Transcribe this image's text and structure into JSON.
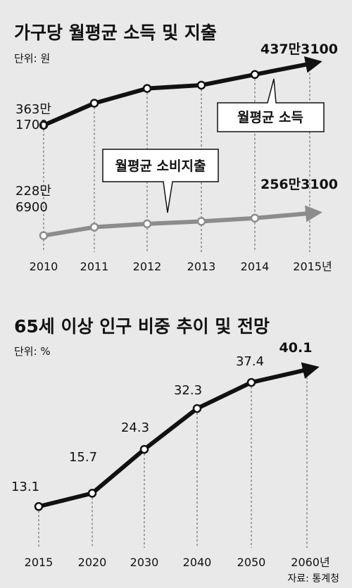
{
  "source": "자료: 통계청",
  "chart_data": [
    {
      "type": "line",
      "title": "가구당 월평균 소득 및 지출",
      "unit": "단위: 원",
      "categories": [
        "2010",
        "2011",
        "2012",
        "2013",
        "2014",
        "2015년"
      ],
      "ylim": [
        2000000,
        4600000
      ],
      "series": [
        {
          "name": "월평균 소득",
          "color": "#111111",
          "values": [
            3631700,
            3900000,
            4080000,
            4120000,
            4250000,
            4373100
          ],
          "start_label": [
            "363만",
            "1700"
          ],
          "end_label": "437만3100"
        },
        {
          "name": "월평균 소비지출",
          "color": "#8c8c8c",
          "values": [
            2286900,
            2390000,
            2430000,
            2460000,
            2500000,
            2563100
          ],
          "start_label": [
            "228만",
            "6900"
          ],
          "end_label": "256만3100"
        }
      ]
    },
    {
      "type": "line",
      "title": "65세 이상 인구 비중 추이 및 전망",
      "unit": "단위: %",
      "categories": [
        "2015",
        "2020",
        "2030",
        "2040",
        "2050",
        "2060년"
      ],
      "ylim": [
        5,
        45
      ],
      "series": [
        {
          "color": "#111111",
          "values": [
            13.1,
            15.7,
            24.3,
            32.3,
            37.4,
            40.1
          ],
          "labels": [
            "13.1",
            "15.7",
            "24.3",
            "32.3",
            "37.4",
            "40.1"
          ]
        }
      ]
    }
  ]
}
